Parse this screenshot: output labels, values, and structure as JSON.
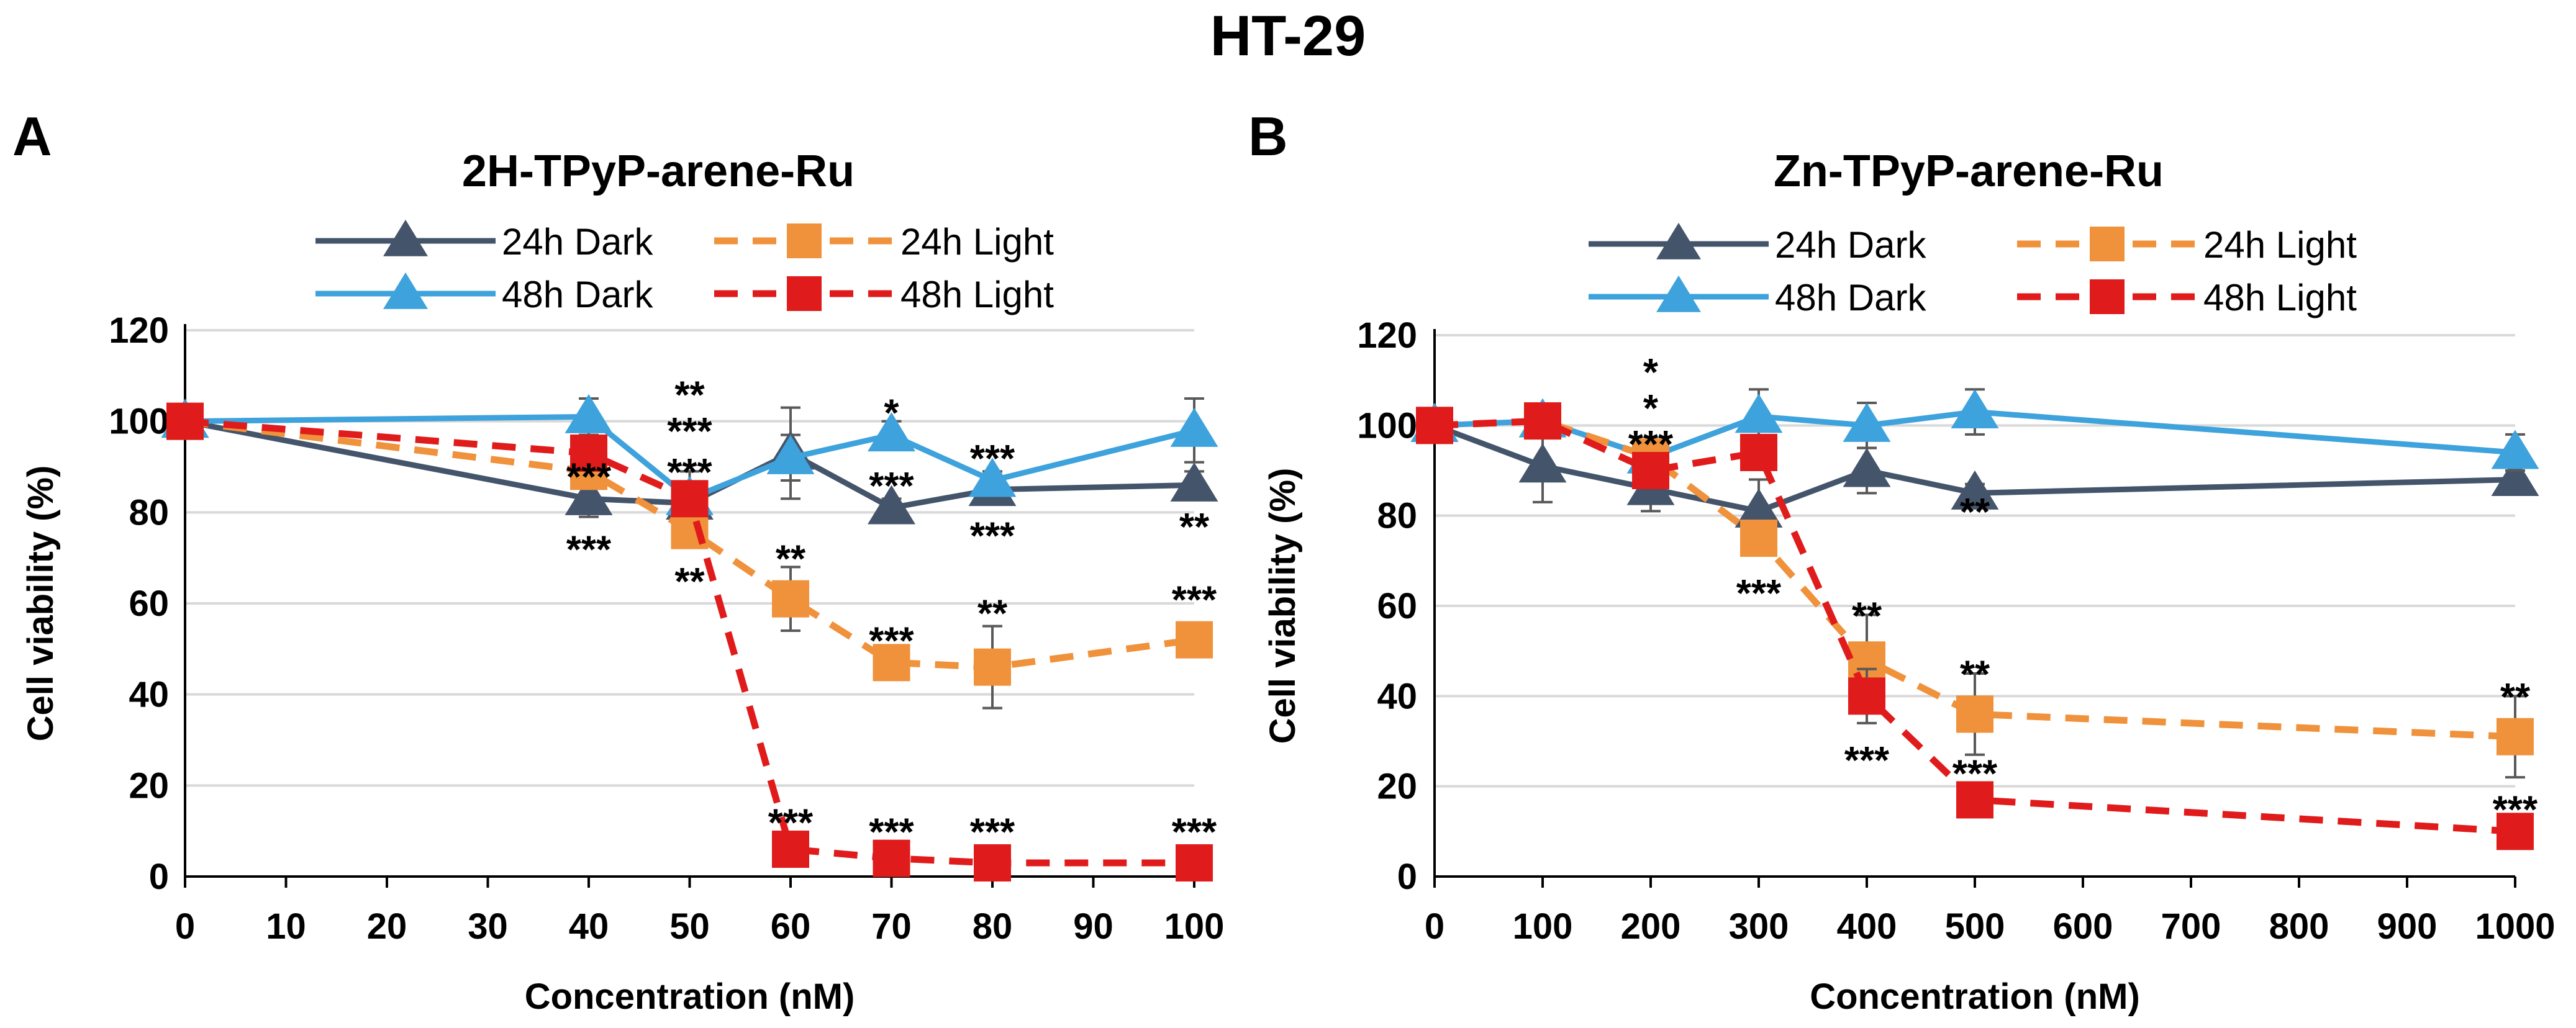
{
  "figure_title": "HT-29",
  "colors": {
    "dark24": "#44546a",
    "dark48": "#3ea2dc",
    "light24": "#f0913b",
    "light48": "#e01b1b",
    "grid": "#d9d9d9",
    "text": "#000000"
  },
  "chart_data": [
    {
      "panel_label": "A",
      "type": "line",
      "title": "2H-TPyP-arene-Ru",
      "xlabel": "Concentration (nM)",
      "ylabel": "Cell viability (%)",
      "ylim": [
        0,
        120
      ],
      "yticks": [
        "0",
        "20",
        "40",
        "60",
        "80",
        "100",
        "120"
      ],
      "categories": [
        "0",
        "10",
        "20",
        "30",
        "40",
        "50",
        "60",
        "70",
        "80",
        "90",
        "100"
      ],
      "grid": true,
      "legend_position": "top",
      "legend": [
        "24h Dark",
        "24h Light",
        "48h Dark",
        "48h Light"
      ],
      "series": [
        {
          "name": "24h Dark",
          "color_key": "dark24",
          "marker": "triangle",
          "dashed": false,
          "x": [
            "0",
            "40",
            "50",
            "60",
            "70",
            "80",
            "100"
          ],
          "values": [
            100,
            83,
            82,
            93,
            81,
            85,
            86
          ],
          "errors": [
            0,
            4,
            3,
            10,
            2,
            2,
            3
          ]
        },
        {
          "name": "48h Dark",
          "color_key": "dark48",
          "marker": "triangle",
          "dashed": false,
          "x": [
            "0",
            "40",
            "50",
            "60",
            "70",
            "80",
            "100"
          ],
          "values": [
            100,
            101,
            83,
            92,
            97,
            87,
            98
          ],
          "errors": [
            0,
            4,
            6,
            5,
            3,
            2,
            7
          ]
        },
        {
          "name": "24h Light",
          "color_key": "light24",
          "marker": "square",
          "dashed": true,
          "x": [
            "0",
            "40",
            "50",
            "60",
            "70",
            "80",
            "100"
          ],
          "values": [
            100,
            89,
            76,
            61,
            47,
            46,
            52
          ],
          "errors": [
            0,
            3,
            3,
            7,
            3,
            9,
            3
          ]
        },
        {
          "name": "48h Light",
          "color_key": "light48",
          "marker": "square",
          "dashed": true,
          "x": [
            "0",
            "40",
            "50",
            "60",
            "70",
            "80",
            "100"
          ],
          "values": [
            100,
            93,
            83,
            6,
            4,
            3,
            3
          ],
          "errors": [
            0,
            3,
            3,
            1,
            1,
            1,
            1
          ]
        }
      ],
      "annotations": [
        {
          "x": "40",
          "y": 89,
          "text": "***"
        },
        {
          "x": "40",
          "y": 73,
          "text": "***"
        },
        {
          "x": "50",
          "y": 107,
          "text": "**"
        },
        {
          "x": "50",
          "y": 99,
          "text": "***"
        },
        {
          "x": "50",
          "y": 90,
          "text": "***"
        },
        {
          "x": "50",
          "y": 66,
          "text": "**"
        },
        {
          "x": "60",
          "y": 71,
          "text": "**"
        },
        {
          "x": "60",
          "y": 13,
          "text": "***"
        },
        {
          "x": "70",
          "y": 103,
          "text": "*"
        },
        {
          "x": "70",
          "y": 87,
          "text": "***"
        },
        {
          "x": "70",
          "y": 53,
          "text": "***"
        },
        {
          "x": "70",
          "y": 11,
          "text": "***"
        },
        {
          "x": "80",
          "y": 93,
          "text": "***"
        },
        {
          "x": "80",
          "y": 76,
          "text": "***"
        },
        {
          "x": "80",
          "y": 59,
          "text": "**"
        },
        {
          "x": "80",
          "y": 11,
          "text": "***"
        },
        {
          "x": "100",
          "y": 78,
          "text": "**"
        },
        {
          "x": "100",
          "y": 62,
          "text": "***"
        },
        {
          "x": "100",
          "y": 11,
          "text": "***"
        }
      ]
    },
    {
      "panel_label": "B",
      "type": "line",
      "title": "Zn-TPyP-arene-Ru",
      "xlabel": "Concentration (nM)",
      "ylabel": "Cell viability (%)",
      "ylim": [
        0,
        120
      ],
      "yticks": [
        "0",
        "20",
        "40",
        "60",
        "80",
        "100",
        "120"
      ],
      "categories": [
        "0",
        "100",
        "200",
        "300",
        "400",
        "500",
        "600",
        "700",
        "800",
        "900",
        "1000"
      ],
      "grid": true,
      "legend_position": "top",
      "legend": [
        "24h Dark",
        "24h Light",
        "48h Dark",
        "48h Light"
      ],
      "series": [
        {
          "name": "24h Dark",
          "color_key": "dark24",
          "marker": "triangle",
          "dashed": false,
          "x": [
            "0",
            "100",
            "200",
            "300",
            "400",
            "500",
            "1000"
          ],
          "values": [
            100,
            91,
            86,
            81,
            90,
            85,
            88
          ],
          "errors": [
            0,
            8,
            5,
            7,
            5,
            2,
            2
          ]
        },
        {
          "name": "48h Dark",
          "color_key": "dark48",
          "marker": "triangle",
          "dashed": false,
          "x": [
            "0",
            "100",
            "200",
            "300",
            "400",
            "500",
            "1000"
          ],
          "values": [
            100,
            101,
            93,
            102,
            100,
            103,
            94
          ],
          "errors": [
            0,
            2,
            3,
            6,
            5,
            5,
            4
          ]
        },
        {
          "name": "24h Light",
          "color_key": "light24",
          "marker": "square",
          "dashed": true,
          "x": [
            "0",
            "100",
            "200",
            "300",
            "400",
            "500",
            "1000"
          ],
          "values": [
            100,
            101,
            93,
            75,
            48,
            36,
            31
          ],
          "errors": [
            0,
            2,
            3,
            3,
            10,
            9,
            9
          ]
        },
        {
          "name": "48h Light",
          "color_key": "light48",
          "marker": "square",
          "dashed": true,
          "x": [
            "0",
            "100",
            "200",
            "300",
            "400",
            "500",
            "1000"
          ],
          "values": [
            100,
            101,
            90,
            94,
            40,
            17,
            10
          ],
          "errors": [
            0,
            2,
            3,
            2,
            6,
            2,
            1
          ]
        }
      ],
      "annotations": [
        {
          "x": "200",
          "y": 113,
          "text": "*"
        },
        {
          "x": "200",
          "y": 105,
          "text": "*"
        },
        {
          "x": "200",
          "y": 97,
          "text": "***"
        },
        {
          "x": "300",
          "y": 64,
          "text": "***"
        },
        {
          "x": "400",
          "y": 59,
          "text": "**"
        },
        {
          "x": "400",
          "y": 27,
          "text": "***"
        },
        {
          "x": "500",
          "y": 82,
          "text": "**"
        },
        {
          "x": "500",
          "y": 46,
          "text": "**"
        },
        {
          "x": "500",
          "y": 24,
          "text": "***"
        },
        {
          "x": "1000",
          "y": 41,
          "text": "**"
        },
        {
          "x": "1000",
          "y": 16,
          "text": "***"
        }
      ]
    }
  ]
}
